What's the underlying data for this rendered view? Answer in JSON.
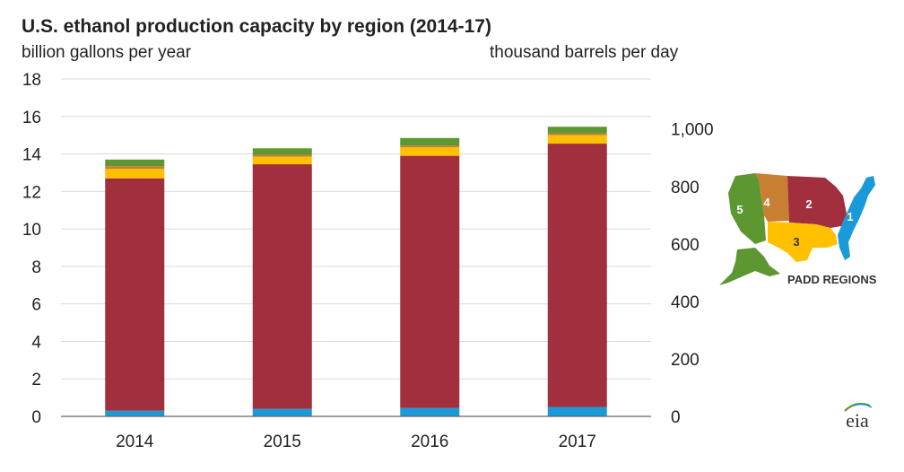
{
  "header": {
    "title": "U.S. ethanol production capacity by region (2014-17)",
    "unit_left": "billion gallons per year",
    "unit_right": "thousand barrels per day"
  },
  "map": {
    "label": "PADD REGIONS",
    "regions": [
      {
        "id": "1",
        "color": "#1a9ad8"
      },
      {
        "id": "2",
        "color": "#a12f3d"
      },
      {
        "id": "3",
        "color": "#ffc000"
      },
      {
        "id": "4",
        "color": "#c87f31"
      },
      {
        "id": "5",
        "color": "#5d9731"
      }
    ]
  },
  "logo": {
    "text": "eia"
  },
  "chart_data": {
    "type": "bar",
    "stacked": true,
    "categories": [
      "2014",
      "2015",
      "2016",
      "2017"
    ],
    "series": [
      {
        "color": "#1a9ad8",
        "values": [
          0.3,
          0.4,
          0.45,
          0.5
        ]
      },
      {
        "color": "#a12f3d",
        "values": [
          12.4,
          13.05,
          13.45,
          14.05
        ]
      },
      {
        "color": "#ffc000",
        "values": [
          0.5,
          0.4,
          0.45,
          0.45
        ]
      },
      {
        "color": "#c87f31",
        "values": [
          0.15,
          0.1,
          0.1,
          0.1
        ]
      },
      {
        "color": "#5d9731",
        "values": [
          0.35,
          0.35,
          0.4,
          0.35
        ]
      }
    ],
    "ylim": [
      0,
      18
    ],
    "yticks": [
      0,
      2,
      4,
      6,
      8,
      10,
      12,
      14,
      16,
      18
    ],
    "ylim_right": [
      0,
      1174
    ],
    "yticks_right": [
      {
        "value": 0,
        "label": "0"
      },
      {
        "value": 200,
        "label": "200"
      },
      {
        "value": 400,
        "label": "400"
      },
      {
        "value": 600,
        "label": "600"
      },
      {
        "value": 800,
        "label": "800"
      },
      {
        "value": 1000,
        "label": "1,000"
      }
    ],
    "grid": true
  }
}
